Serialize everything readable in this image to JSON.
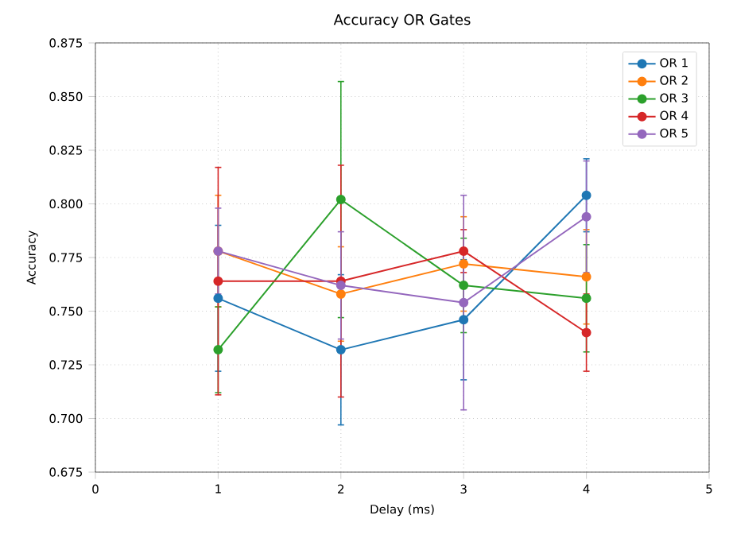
{
  "chart_data": {
    "type": "line",
    "title": "Accuracy OR Gates",
    "xlabel": "Delay (ms)",
    "ylabel": "Accuracy",
    "x": [
      1,
      2,
      3,
      4
    ],
    "series": [
      {
        "name": "OR 1",
        "color": "#1f77b4",
        "values": [
          0.756,
          0.732,
          0.746,
          0.804
        ],
        "errors": [
          0.034,
          0.035,
          0.028,
          0.017
        ]
      },
      {
        "name": "OR 2",
        "color": "#ff7f0e",
        "values": [
          0.778,
          0.758,
          0.772,
          0.766
        ],
        "errors": [
          0.026,
          0.022,
          0.022,
          0.022
        ]
      },
      {
        "name": "OR 3",
        "color": "#2ca02c",
        "values": [
          0.732,
          0.802,
          0.762,
          0.756
        ],
        "errors": [
          0.02,
          0.055,
          0.022,
          0.025
        ]
      },
      {
        "name": "OR 4",
        "color": "#d62728",
        "values": [
          0.764,
          0.764,
          0.778,
          0.74
        ],
        "errors": [
          0.053,
          0.054,
          0.01,
          0.018
        ]
      },
      {
        "name": "OR 5",
        "color": "#9467bd",
        "values": [
          0.778,
          0.762,
          0.754,
          0.794
        ],
        "errors": [
          0.02,
          0.025,
          0.05,
          0.026
        ]
      }
    ],
    "xlim": [
      0,
      5
    ],
    "xticks": [
      0,
      1,
      2,
      3,
      4,
      5
    ],
    "ylim": [
      0.675,
      0.875
    ],
    "yticks": [
      {
        "value": 0.675,
        "label": "0.675"
      },
      {
        "value": 0.7,
        "label": "0.700"
      },
      {
        "value": 0.725,
        "label": "0.725"
      },
      {
        "value": 0.75,
        "label": "0.750"
      },
      {
        "value": 0.775,
        "label": "0.775"
      },
      {
        "value": 0.8,
        "label": "0.800"
      },
      {
        "value": 0.825,
        "label": "0.825"
      },
      {
        "value": 0.85,
        "label": "0.850"
      },
      {
        "value": 0.875,
        "label": "0.875"
      }
    ],
    "grid": true,
    "legend": "top right",
    "marker": "circle",
    "line_style": "solid"
  }
}
